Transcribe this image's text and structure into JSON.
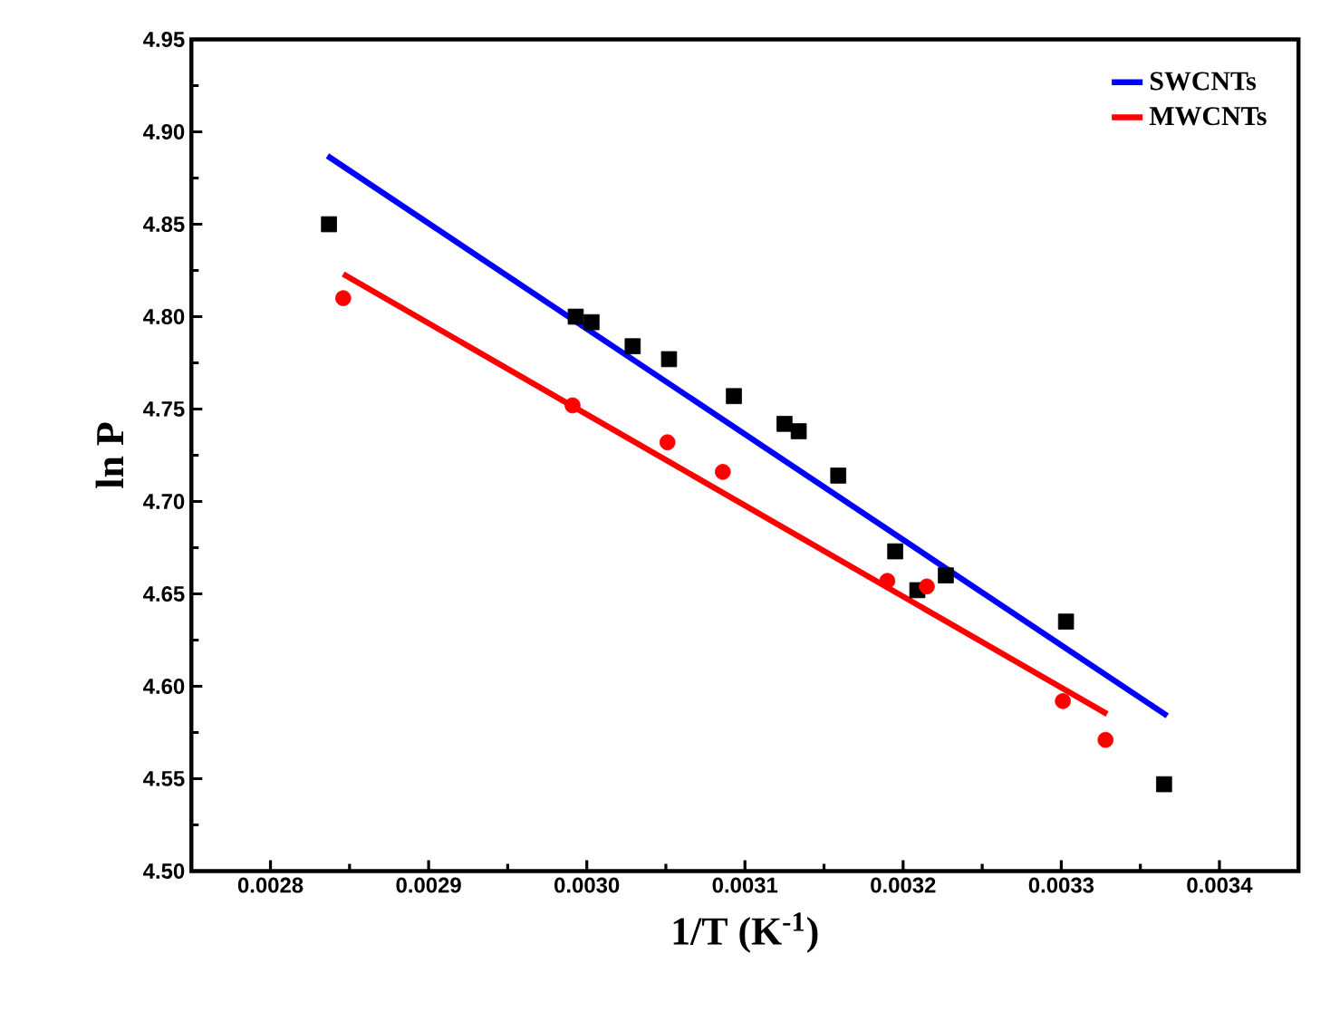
{
  "chart_data": {
    "type": "line",
    "xlabel": "1/T (K$^{-1}$)",
    "ylabel": "ln P",
    "xlim": [
      0.00275,
      0.00345
    ],
    "ylim": [
      4.5,
      4.95
    ],
    "xticks": [
      {
        "value": 0.0028,
        "label": "0.0028"
      },
      {
        "value": 0.0029,
        "label": "0.0029"
      },
      {
        "value": 0.003,
        "label": "0.0030"
      },
      {
        "value": 0.0031,
        "label": "0.0031"
      },
      {
        "value": 0.0032,
        "label": "0.0032"
      },
      {
        "value": 0.0033,
        "label": "0.0033"
      },
      {
        "value": 0.0034,
        "label": "0.0034"
      }
    ],
    "yticks": [
      {
        "value": 4.5,
        "label": "4.50"
      },
      {
        "value": 4.55,
        "label": "4.55"
      },
      {
        "value": 4.6,
        "label": "4.60"
      },
      {
        "value": 4.65,
        "label": "4.65"
      },
      {
        "value": 4.7,
        "label": "4.70"
      },
      {
        "value": 4.75,
        "label": "4.75"
      },
      {
        "value": 4.8,
        "label": "4.80"
      },
      {
        "value": 4.85,
        "label": "4.85"
      },
      {
        "value": 4.9,
        "label": "4.90"
      },
      {
        "value": 4.95,
        "label": "4.95"
      }
    ],
    "legend": "top right",
    "grid": false,
    "series": [
      {
        "name": "SWCNTs",
        "marker": "none",
        "color": "#0000ff",
        "x": [
          0.002836,
          0.003367
        ],
        "values": [
          4.887,
          4.584
        ]
      },
      {
        "name": "MWCNTs",
        "marker": "none",
        "color": "#ff0000",
        "x": [
          0.002846,
          0.003329
        ],
        "values": [
          4.823,
          4.585
        ]
      },
      {
        "type": "scatter",
        "marker": "square",
        "color": "#000000",
        "x": [
          0.002837,
          0.002993,
          0.003003,
          0.003029,
          0.003052,
          0.003093,
          0.003125,
          0.003134,
          0.003159,
          0.003195,
          0.003209,
          0.003227,
          0.003303,
          0.003365
        ],
        "values": [
          4.85,
          4.8,
          4.797,
          4.784,
          4.777,
          4.757,
          4.742,
          4.738,
          4.714,
          4.673,
          4.652,
          4.66,
          4.635,
          4.547
        ]
      },
      {
        "type": "scatter",
        "marker": "circle",
        "color": "#ff0000",
        "x": [
          0.002846,
          0.002991,
          0.003051,
          0.003086,
          0.00319,
          0.003215,
          0.003301,
          0.003328
        ],
        "values": [
          4.81,
          4.752,
          4.732,
          4.716,
          4.657,
          4.654,
          4.592,
          4.571
        ]
      }
    ]
  }
}
